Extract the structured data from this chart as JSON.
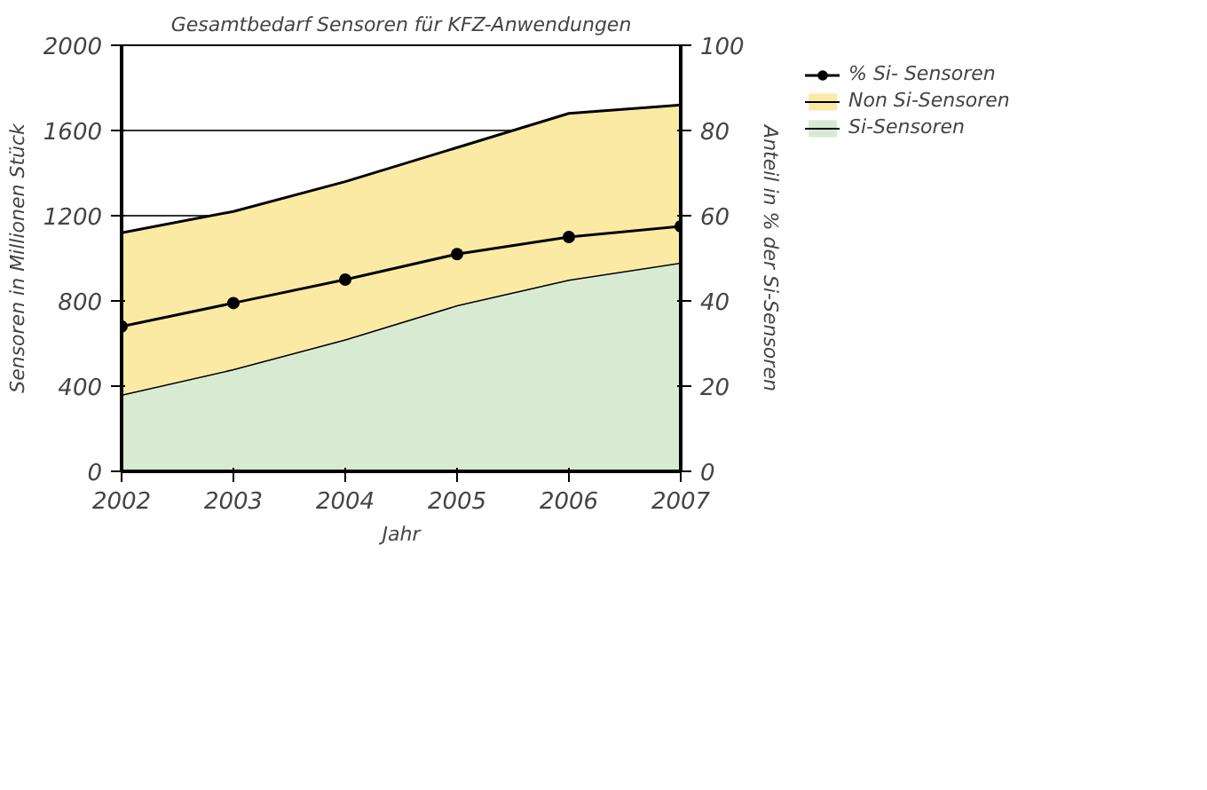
{
  "chart_data": {
    "type": "area",
    "title": "Gesamtbedarf Sensoren für KFZ-Anwendungen",
    "xlabel": "Jahr",
    "ylabel": "Sensoren in Millionen Stück",
    "y2label": "Anteil in % der Si-Sensoren",
    "x": [
      2002,
      2003,
      2004,
      2005,
      2006,
      2007
    ],
    "xlim": [
      2002,
      2007
    ],
    "xticks": [
      2002,
      2003,
      2004,
      2005,
      2006,
      2007
    ],
    "ylim": [
      0,
      2000
    ],
    "yticks": [
      0,
      400,
      800,
      1200,
      1600,
      2000
    ],
    "y2lim": [
      0,
      100
    ],
    "y2ticks": [
      0,
      20,
      40,
      60,
      80,
      100
    ],
    "stacked": true,
    "grid": "y",
    "legend": "right",
    "series": [
      {
        "name": "Si-Sensoren",
        "color": "#d8ebd2",
        "values": [
          360,
          480,
          620,
          780,
          900,
          980
        ]
      },
      {
        "name": "Non Si-Sensoren",
        "color": "#fbeaa4",
        "values": [
          760,
          740,
          740,
          740,
          780,
          740
        ]
      },
      {
        "name": "% Si- Sensoren",
        "type": "line",
        "axis": "y2",
        "color": "#000000",
        "marker": "circle",
        "values": [
          34,
          39.5,
          45,
          51,
          55,
          57.5
        ]
      }
    ]
  }
}
